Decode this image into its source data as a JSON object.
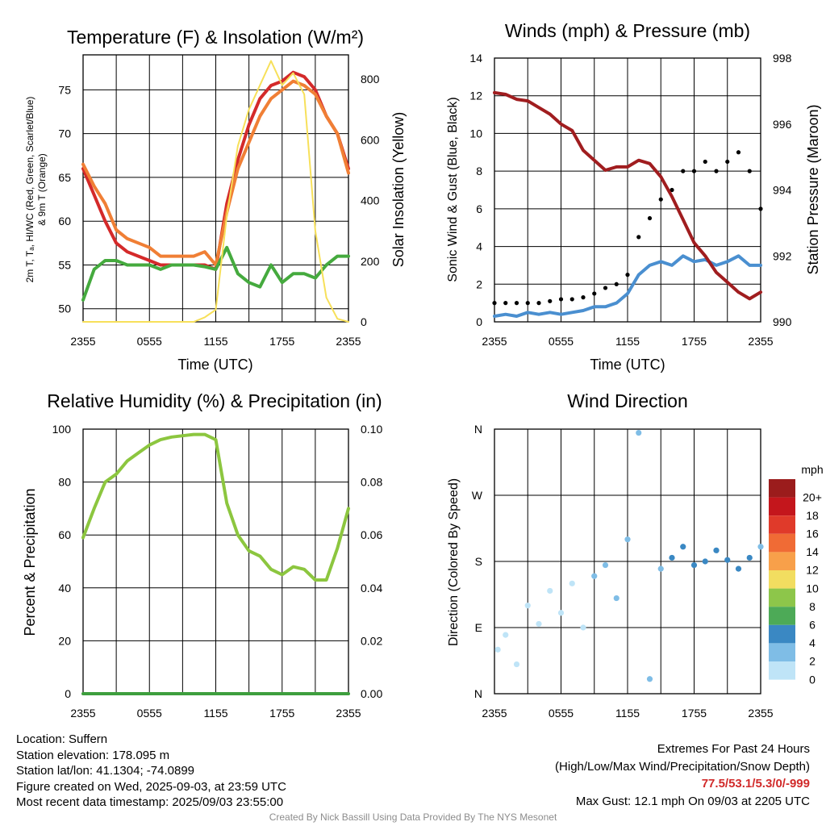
{
  "panels": {
    "temperature": {
      "title": "Temperature (F) & Insolation (W/m²)",
      "ylabel_left": [
        "2m T, Tₐ, HI/WC (Red, Green, Scarlet/Blue)",
        "& 9m T (Orange)"
      ],
      "ylabel_right": "Solar Insolation (Yellow)",
      "xlabel": "Time (UTC)"
    },
    "winds": {
      "title": "Winds (mph) & Pressure (mb)",
      "ylabel_left": "Sonic Wind & Gust (Blue, Black)",
      "ylabel_right": "Station Pressure (Maroon)",
      "xlabel": "Time (UTC)"
    },
    "humidity": {
      "title": "Relative Humidity (%) & Precipitation (in)",
      "ylabel_left": "Percent & Precipitation"
    },
    "direction": {
      "title": "Wind Direction",
      "ylabel_left": "Direction (Colored By Speed)",
      "legend_title": "mph",
      "legend_labels": [
        "20+",
        "18",
        "16",
        "14",
        "12",
        "10",
        "8",
        "6",
        "4",
        "2",
        "0"
      ],
      "legend_colors": [
        "#9b1c1c",
        "#c4161c",
        "#e03a2a",
        "#f06b35",
        "#f8a04a",
        "#f2dd60",
        "#8dc64a",
        "#4daa57",
        "#3a88c3",
        "#7fbde6",
        "#bfe4f7"
      ]
    }
  },
  "chart_data": [
    {
      "type": "line",
      "title": "Temperature (F) & Insolation (W/m²)",
      "x_ticks": [
        "2355",
        "0555",
        "1155",
        "1755",
        "2355"
      ],
      "ylim": [
        48.5,
        79
      ],
      "y_ticks": [
        50,
        55,
        60,
        65,
        70,
        75
      ],
      "ylim_right": [
        0,
        880
      ],
      "y2_ticks": [
        0,
        200,
        400,
        600,
        800
      ],
      "x": [
        0,
        1,
        2,
        3,
        4,
        5,
        6,
        7,
        8,
        9,
        10,
        11,
        12,
        13,
        14,
        15,
        16,
        17,
        18,
        19,
        20,
        21,
        22,
        23,
        24
      ],
      "series": [
        {
          "name": "2m T",
          "color": "#d42a2a",
          "axis": "left",
          "values": [
            66,
            63,
            60,
            57.5,
            56.5,
            56,
            55.5,
            55,
            55,
            55,
            55,
            55,
            54.5,
            62,
            67,
            71,
            74,
            75.5,
            76,
            77,
            76.5,
            75,
            72,
            70,
            66
          ]
        },
        {
          "name": "9m T",
          "color": "#f07f35",
          "axis": "left",
          "values": [
            66.5,
            64,
            62,
            59,
            58,
            57.5,
            57,
            56,
            56,
            56,
            56,
            56.5,
            55,
            61,
            66,
            69,
            72,
            74,
            75,
            76,
            75.5,
            74.5,
            72,
            70,
            65.5
          ]
        },
        {
          "name": "Tₐ",
          "color": "#45aa3e",
          "axis": "left",
          "values": [
            51,
            54.5,
            55.5,
            55.5,
            55,
            55,
            55,
            54.5,
            55,
            55,
            55,
            54.8,
            54.5,
            57,
            54,
            53,
            52.5,
            55,
            53,
            54,
            54,
            53.5,
            55,
            56,
            56
          ]
        },
        {
          "name": "Solar Insolation",
          "color": "#f7e05a",
          "axis": "right",
          "values": [
            0,
            0,
            0,
            0,
            0,
            0,
            0,
            0,
            0,
            0,
            0,
            15,
            40,
            350,
            580,
            700,
            780,
            860,
            780,
            820,
            750,
            300,
            80,
            10,
            0
          ]
        }
      ]
    },
    {
      "type": "line",
      "title": "Winds (mph) & Pressure (mb)",
      "x_ticks": [
        "2355",
        "0555",
        "1155",
        "1755",
        "2355"
      ],
      "ylim": [
        0,
        14
      ],
      "y_ticks": [
        0,
        2,
        4,
        6,
        8,
        10,
        12,
        14
      ],
      "ylim_right": [
        990,
        998
      ],
      "y2_ticks": [
        990,
        992,
        994,
        996,
        998
      ],
      "x": [
        0,
        1,
        2,
        3,
        4,
        5,
        6,
        7,
        8,
        9,
        10,
        11,
        12,
        13,
        14,
        15,
        16,
        17,
        18,
        19,
        20,
        21,
        22,
        23,
        24
      ],
      "series": [
        {
          "name": "Sonic Wind",
          "color": "#4a8fd0",
          "axis": "left",
          "values": [
            0.3,
            0.4,
            0.3,
            0.5,
            0.4,
            0.5,
            0.4,
            0.5,
            0.6,
            0.8,
            0.8,
            1.0,
            1.5,
            2.5,
            3.0,
            3.2,
            3.0,
            3.5,
            3.2,
            3.3,
            3.0,
            3.2,
            3.5,
            3.0,
            3.0
          ]
        },
        {
          "name": "Gust",
          "color": "#000000",
          "axis": "left",
          "type": "scatter",
          "values": [
            1.0,
            1.0,
            1.0,
            1.0,
            1.0,
            1.1,
            1.2,
            1.2,
            1.3,
            1.5,
            1.8,
            2.0,
            2.5,
            4.5,
            5.5,
            6.5,
            7.0,
            8.0,
            8.0,
            8.5,
            8.0,
            8.5,
            9.0,
            8.0,
            6.0
          ]
        },
        {
          "name": "Station Pressure",
          "color": "#a01d1f",
          "axis": "right",
          "values": [
            996.95,
            996.9,
            996.75,
            996.7,
            996.5,
            996.3,
            996.0,
            995.8,
            995.2,
            994.9,
            994.6,
            994.7,
            994.7,
            994.9,
            994.8,
            994.4,
            993.8,
            993.1,
            992.4,
            992.0,
            991.5,
            991.2,
            990.9,
            990.7,
            990.9
          ]
        }
      ]
    },
    {
      "type": "line",
      "title": "Relative Humidity (%) & Precipitation (in)",
      "x_ticks": [
        "2355",
        "0555",
        "1155",
        "1755",
        "2355"
      ],
      "ylim": [
        0,
        100
      ],
      "y_ticks": [
        0,
        20,
        40,
        60,
        80,
        100
      ],
      "ylim_right": [
        0,
        0.1
      ],
      "y2_ticks": [
        "0.00",
        "0.02",
        "0.04",
        "0.06",
        "0.08",
        "0.10"
      ],
      "x": [
        0,
        1,
        2,
        3,
        4,
        5,
        6,
        7,
        8,
        9,
        10,
        11,
        12,
        13,
        14,
        15,
        16,
        17,
        18,
        19,
        20,
        21,
        22,
        23,
        24
      ],
      "series": [
        {
          "name": "Relative Humidity",
          "color": "#8cc63f",
          "axis": "left",
          "values": [
            59,
            70,
            80,
            83,
            88,
            91,
            94,
            96,
            97,
            97.5,
            98,
            98,
            96,
            72,
            60,
            54,
            52,
            47,
            45,
            48,
            47,
            43,
            43,
            55,
            70
          ]
        },
        {
          "name": "Precipitation",
          "color": "#3d9e3d",
          "axis": "right",
          "values": [
            0,
            0,
            0,
            0,
            0,
            0,
            0,
            0,
            0,
            0,
            0,
            0,
            0,
            0,
            0,
            0,
            0,
            0,
            0,
            0,
            0,
            0,
            0,
            0,
            0
          ]
        }
      ]
    },
    {
      "type": "scatter",
      "title": "Wind Direction",
      "x_ticks": [
        "2355",
        "0555",
        "1155",
        "1755",
        "2355"
      ],
      "y_ticks": [
        "N",
        "E",
        "S",
        "W",
        "N"
      ],
      "ylim": [
        0,
        360
      ],
      "points": [
        [
          0.3,
          60,
          0.4
        ],
        [
          1,
          80,
          0.6
        ],
        [
          2,
          40,
          0.3
        ],
        [
          3,
          120,
          0.5
        ],
        [
          4,
          95,
          0.5
        ],
        [
          5,
          140,
          0.8
        ],
        [
          6,
          110,
          0.6
        ],
        [
          7,
          150,
          0.7
        ],
        [
          8,
          90,
          0.8
        ],
        [
          9,
          160,
          1.0
        ],
        [
          10,
          175,
          1.2
        ],
        [
          11,
          130,
          1.3
        ],
        [
          12,
          210,
          1.5
        ],
        [
          13,
          355,
          1.8
        ],
        [
          14,
          20,
          2.3
        ],
        [
          15,
          170,
          2.6
        ],
        [
          16,
          185,
          3.0
        ],
        [
          17,
          200,
          3.2
        ],
        [
          18,
          175,
          3.0
        ],
        [
          19,
          180,
          3.5
        ],
        [
          20,
          195,
          3.4
        ],
        [
          21,
          182,
          3.0
        ],
        [
          22,
          170,
          3.2
        ],
        [
          23,
          185,
          3.0
        ],
        [
          24,
          200,
          2.5
        ]
      ]
    }
  ],
  "footer": {
    "location": "Location: Suffern",
    "elevation": "Station elevation: 178.095 m",
    "latlon": "Station lat/lon: 41.1304; -74.0899",
    "created": "Figure created on Wed, 2025-09-03, at 23:59 UTC",
    "recent": "Most recent data timestamp: 2025/09/03 23:55:00",
    "extremes_title": "Extremes For Past 24 Hours",
    "extremes_sub": "(High/Low/Max Wind/Precipitation/Snow Depth)",
    "extremes_values": "77.5/53.1/5.3/0/-999",
    "max_gust": "Max Gust: 12.1 mph On 09/03 at 2205 UTC",
    "credit": "Created By Nick Bassill Using Data Provided By The NYS Mesonet"
  }
}
